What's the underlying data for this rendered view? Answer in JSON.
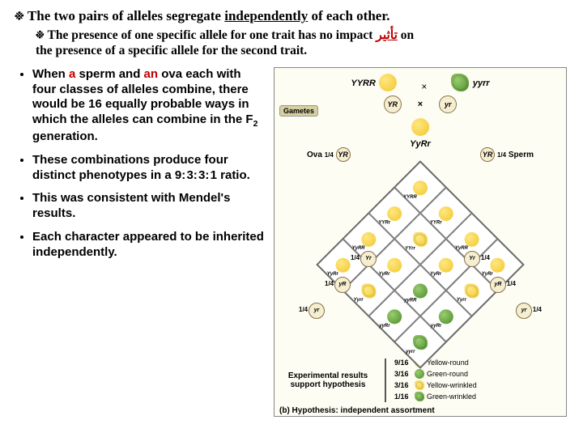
{
  "header": {
    "bullet": "፠",
    "text_before": "The two pairs of alleles segregate ",
    "underlined": "independently",
    "text_after": " of each other."
  },
  "subheader": {
    "bullet": "፠",
    "line1_a": "The presence of one specific allele for one trait has no impact ",
    "line1_red": "تأثير",
    "line1_b": " on",
    "line2": "the presence of a specific allele for the second trait."
  },
  "bullets": [
    {
      "parts": [
        {
          "t": "When ",
          "red": false
        },
        {
          "t": "a",
          "red": true
        },
        {
          "t": " sperm and ",
          "red": false
        },
        {
          "t": "an",
          "red": true
        },
        {
          "t": " ova each with four classes of alleles combine, there would be 16 equally probable ways in which the alleles can combine in the F",
          "red": false
        },
        {
          "t": "2",
          "sub": true
        },
        {
          "t": " generation.",
          "red": false
        }
      ]
    },
    {
      "parts": [
        {
          "t": "These combinations produce four distinct phenotypes in a 9: 3: 3: 1 ratio."
        }
      ]
    },
    {
      "parts": [
        {
          "t": "This was consistent with Mendel's results."
        }
      ]
    },
    {
      "parts": [
        {
          "t": "Each character appeared to be inherited independently."
        }
      ]
    }
  ],
  "diagram": {
    "parents": {
      "p1_geno": "YYRR",
      "p2_geno": "yyrr",
      "p1_color": "yellow",
      "p2_color": "green",
      "p2_wrinkled": true
    },
    "gametes_label": "Gametes",
    "gamete_left": "YR",
    "gamete_right": "yr",
    "cross_symbol": "×",
    "f1_color": "yellow",
    "f1_geno": "YyRr",
    "ova_label": "Ova",
    "sperm_label": "Sperm",
    "quarter": "1/4",
    "edge_gametes_left": [
      "YR",
      "Yr",
      "yR",
      "yr"
    ],
    "edge_gametes_right": [
      "YR",
      "Yr",
      "yR",
      "yr"
    ],
    "grid": [
      [
        {
          "c": "yellow",
          "w": false,
          "g": "YYRR"
        },
        {
          "c": "yellow",
          "w": false,
          "g": "YYRr"
        },
        {
          "c": "yellow",
          "w": false,
          "g": "YyRR"
        },
        {
          "c": "yellow",
          "w": false,
          "g": "YyRr"
        }
      ],
      [
        {
          "c": "yellow",
          "w": false,
          "g": "YYRr"
        },
        {
          "c": "yellow",
          "w": true,
          "g": "YYrr"
        },
        {
          "c": "yellow",
          "w": false,
          "g": "YyRr"
        },
        {
          "c": "yellow",
          "w": true,
          "g": "Yyrr"
        }
      ],
      [
        {
          "c": "yellow",
          "w": false,
          "g": "YyRR"
        },
        {
          "c": "yellow",
          "w": false,
          "g": "YyRr"
        },
        {
          "c": "green",
          "w": false,
          "g": "yyRR"
        },
        {
          "c": "green",
          "w": false,
          "g": "yyRr"
        }
      ],
      [
        {
          "c": "yellow",
          "w": false,
          "g": "YyRr"
        },
        {
          "c": "yellow",
          "w": true,
          "g": "Yyrr"
        },
        {
          "c": "green",
          "w": false,
          "g": "yyRr"
        },
        {
          "c": "green",
          "w": true,
          "g": "yyrr"
        }
      ]
    ],
    "exp_text": "Experimental results support hypothesis",
    "legend": [
      {
        "frac": "9/16",
        "c": "yellow",
        "w": false,
        "label": "Yellow-round"
      },
      {
        "frac": "3/16",
        "c": "green",
        "w": false,
        "label": "Green-round"
      },
      {
        "frac": "3/16",
        "c": "yellow",
        "w": true,
        "label": "Yellow-wrinkled"
      },
      {
        "frac": "1/16",
        "c": "green",
        "w": true,
        "label": "Green-wrinkled"
      }
    ],
    "caption": "(b) Hypothesis: independent assortment"
  },
  "colors": {
    "yellow": "#f0c830",
    "green": "#4a8a2a",
    "olive_box": "#d4d0a0",
    "circ_bg": "#f5eed0",
    "red_text": "#c00000"
  }
}
